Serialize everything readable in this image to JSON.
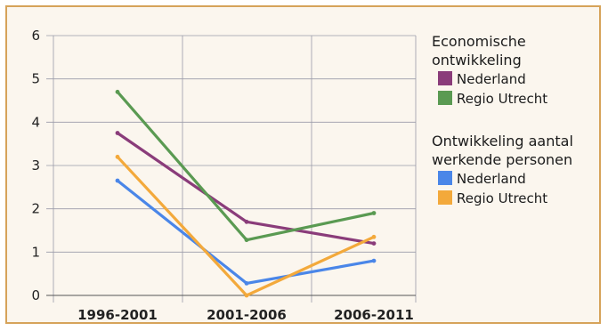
{
  "chart_data": {
    "type": "line",
    "categories": [
      "1996-2001",
      "2001-2006",
      "2006-2011"
    ],
    "ylim": [
      0,
      6
    ],
    "yticks": [
      0,
      1,
      2,
      3,
      4,
      5,
      6
    ],
    "legend_groups": [
      {
        "title_lines": [
          "Economische",
          "ontwikkeling"
        ],
        "series_names": [
          "Nederland",
          "Regio Utrecht"
        ]
      },
      {
        "title_lines": [
          "Ontwikkeling aantal",
          "werkende personen"
        ],
        "series_names": [
          "Nederland",
          "Regio Utrecht"
        ]
      }
    ],
    "series": [
      {
        "name": "Nederland",
        "group": "Economische ontwikkeling",
        "color": "#8a3c7a",
        "values": [
          3.75,
          1.7,
          1.2
        ]
      },
      {
        "name": "Regio Utrecht",
        "group": "Economische ontwikkeling",
        "color": "#5a9a52",
        "values": [
          4.7,
          1.28,
          1.9
        ]
      },
      {
        "name": "Nederland",
        "group": "Ontwikkeling aantal werkende personen",
        "color": "#4a86e8",
        "values": [
          2.65,
          0.28,
          0.8
        ]
      },
      {
        "name": "Regio Utrecht",
        "group": "Ontwikkeling aantal werkende personen",
        "color": "#f3a93b",
        "values": [
          3.2,
          0.0,
          1.35
        ]
      }
    ],
    "grid": true,
    "legend_position": "right"
  }
}
